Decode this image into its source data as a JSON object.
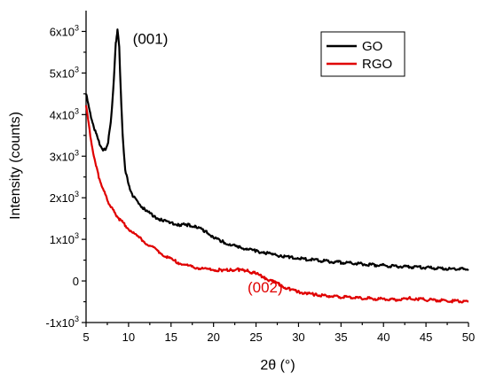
{
  "chart_data": {
    "type": "line",
    "xlabel": "2θ (°)",
    "ylabel": "Intensity (counts)",
    "xlim": [
      5,
      50
    ],
    "ylim": [
      -1000,
      6500
    ],
    "x_ticks": [
      5,
      10,
      15,
      20,
      25,
      30,
      35,
      40,
      45,
      50
    ],
    "y_ticks": [
      {
        "value": -1000,
        "label": "-1x10",
        "exp": "3"
      },
      {
        "value": 0,
        "label": "0",
        "exp": ""
      },
      {
        "value": 1000,
        "label": "1x10",
        "exp": "3"
      },
      {
        "value": 2000,
        "label": "2x10",
        "exp": "3"
      },
      {
        "value": 3000,
        "label": "3x10",
        "exp": "3"
      },
      {
        "value": 4000,
        "label": "4x10",
        "exp": "3"
      },
      {
        "value": 5000,
        "label": "5x10",
        "exp": "3"
      },
      {
        "value": 6000,
        "label": "6x10",
        "exp": "3"
      }
    ],
    "legend_position": "top-right",
    "series": [
      {
        "name": "GO",
        "color": "#000000",
        "x": [
          5,
          5.5,
          6,
          6.5,
          7,
          7.3,
          7.6,
          7.9,
          8.2,
          8.5,
          8.7,
          8.9,
          9.1,
          9.3,
          9.6,
          10,
          10.5,
          11,
          12,
          13,
          14,
          15,
          16,
          17,
          18,
          19,
          20,
          21,
          22,
          23,
          24,
          25,
          26,
          27,
          28,
          29,
          30,
          32,
          34,
          36,
          38,
          40,
          42,
          44,
          46,
          48,
          50
        ],
        "y": [
          4500,
          4000,
          3650,
          3350,
          3150,
          3150,
          3350,
          3800,
          4600,
          5700,
          6050,
          5600,
          4500,
          3500,
          2700,
          2300,
          2050,
          1900,
          1700,
          1550,
          1450,
          1400,
          1350,
          1350,
          1300,
          1200,
          1050,
          950,
          870,
          810,
          760,
          720,
          680,
          640,
          600,
          570,
          540,
          500,
          460,
          430,
          400,
          370,
          350,
          330,
          310,
          290,
          280
        ]
      },
      {
        "name": "RGO",
        "color": "#e00000",
        "x": [
          5,
          5.5,
          6,
          6.5,
          7,
          7.5,
          8,
          8.5,
          9,
          10,
          11,
          12,
          13,
          14,
          15,
          16,
          17,
          18,
          19,
          20,
          21,
          22,
          23,
          24,
          25,
          26,
          27,
          28,
          29,
          30,
          31,
          32,
          34,
          36,
          38,
          40,
          42,
          43,
          44,
          46,
          48,
          50
        ],
        "y": [
          4200,
          3500,
          2900,
          2500,
          2200,
          1950,
          1750,
          1600,
          1470,
          1250,
          1080,
          920,
          780,
          640,
          520,
          430,
          360,
          320,
          290,
          270,
          260,
          270,
          270,
          240,
          180,
          80,
          -20,
          -120,
          -200,
          -260,
          -300,
          -330,
          -370,
          -400,
          -420,
          -440,
          -450,
          -410,
          -440,
          -460,
          -480,
          -500
        ]
      }
    ],
    "annotations": [
      {
        "text": "(001)",
        "x": 10.5,
        "y": 5700,
        "color": "#000000"
      },
      {
        "text": "(002)",
        "x": 24,
        "y": -280,
        "color": "#e00000"
      }
    ]
  }
}
